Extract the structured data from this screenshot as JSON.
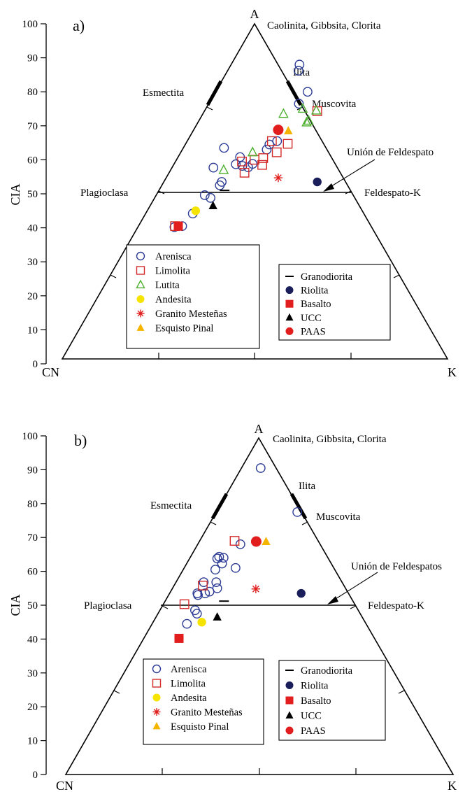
{
  "figure": {
    "ylabel": "CIA",
    "vertex_a": "A",
    "vertex_cn": "CN",
    "vertex_k": "K",
    "minerals": {
      "top": "Caolinita, Gibbsita, Clorita",
      "illite": "Ilita",
      "smectite": "Esmectita",
      "muscovite": "Muscovita",
      "plagioclase": "Plagioclasa",
      "kfeldspar": "Feldespato-K"
    },
    "yticks": [
      "0",
      "10",
      "20",
      "30",
      "40",
      "50",
      "60",
      "70",
      "80",
      "90",
      "100"
    ]
  },
  "chart_data": [
    {
      "type": "scatter",
      "panel_label": "a)",
      "feldspar_join_label": "Unión de Feldespato",
      "ylabel": "CIA",
      "ylim": [
        0,
        100
      ],
      "legend_left": [
        {
          "label": "Arenisca",
          "marker": "open-circle",
          "color": "#2b3b94"
        },
        {
          "label": "Limolita",
          "marker": "open-square",
          "color": "#d42a2a"
        },
        {
          "label": "Lutita",
          "marker": "open-triangle",
          "color": "#4caf2e"
        },
        {
          "label": "Andesita",
          "marker": "filled-circle",
          "color": "#f5e400"
        },
        {
          "label": "Granito Mesteñas",
          "marker": "asterisk",
          "color": "#e11d1d"
        },
        {
          "label": "Esquisto Pinal",
          "marker": "filled-triangle",
          "color": "#f5b400"
        }
      ],
      "legend_right": [
        {
          "label": "Granodiorita",
          "marker": "dash",
          "color": "#000000"
        },
        {
          "label": "Riolita",
          "marker": "filled-circle",
          "color": "#1a1f5c"
        },
        {
          "label": "Basalto",
          "marker": "filled-square",
          "color": "#e11d1d"
        },
        {
          "label": "UCC",
          "marker": "filled-triangle",
          "color": "#000000"
        },
        {
          "label": "PAAS",
          "marker": "filled-circle",
          "color": "#e11d1d"
        }
      ],
      "points": [
        {
          "series": "Arenisca",
          "x": -41.5,
          "y": 40.2
        },
        {
          "series": "Arenisca",
          "x": -37.5,
          "y": 40.5
        },
        {
          "series": "Arenisca",
          "x": -32.0,
          "y": 44.2
        },
        {
          "series": "Arenisca",
          "x": -25.8,
          "y": 49.6
        },
        {
          "series": "Arenisca",
          "x": -22.8,
          "y": 48.8
        },
        {
          "series": "Arenisca",
          "x": -18.0,
          "y": 52.5
        },
        {
          "series": "Arenisca",
          "x": -17.0,
          "y": 53.5
        },
        {
          "series": "Arenisca",
          "x": -21.3,
          "y": 57.7
        },
        {
          "series": "Arenisca",
          "x": -15.8,
          "y": 63.5
        },
        {
          "series": "Arenisca",
          "x": -9.7,
          "y": 58.7
        },
        {
          "series": "Arenisca",
          "x": -6.3,
          "y": 58.2
        },
        {
          "series": "Arenisca",
          "x": -3.3,
          "y": 57.8
        },
        {
          "series": "Arenisca",
          "x": -1.0,
          "y": 58.8
        },
        {
          "series": "Arenisca",
          "x": 6.3,
          "y": 63.0
        },
        {
          "series": "Arenisca",
          "x": 7.7,
          "y": 64.5
        },
        {
          "series": "Arenisca",
          "x": 11.7,
          "y": 65.5
        },
        {
          "series": "Arenisca",
          "x": -7.5,
          "y": 60.8
        },
        {
          "series": "Arenisca",
          "x": 23.0,
          "y": 76.5
        },
        {
          "series": "Arenisca",
          "x": 27.5,
          "y": 80.0
        },
        {
          "series": "Arenisca",
          "x": 22.8,
          "y": 86.2
        },
        {
          "series": "Arenisca",
          "x": 23.3,
          "y": 88.0
        },
        {
          "series": "Limolita",
          "x": -41.2,
          "y": 40.5
        },
        {
          "series": "Limolita",
          "x": -6.5,
          "y": 59.5
        },
        {
          "series": "Limolita",
          "x": -5.2,
          "y": 56.2
        },
        {
          "series": "Limolita",
          "x": 0.0,
          "y": 60.0
        },
        {
          "series": "Limolita",
          "x": 4.0,
          "y": 58.5
        },
        {
          "series": "Limolita",
          "x": 4.5,
          "y": 60.5
        },
        {
          "series": "Limolita",
          "x": 9.0,
          "y": 65.5
        },
        {
          "series": "Limolita",
          "x": 11.5,
          "y": 62.2
        },
        {
          "series": "Limolita",
          "x": 17.2,
          "y": 64.7
        },
        {
          "series": "Limolita",
          "x": 32.5,
          "y": 74.3
        },
        {
          "series": "Lutita",
          "x": -16.0,
          "y": 57.0
        },
        {
          "series": "Lutita",
          "x": -1.0,
          "y": 62.2
        },
        {
          "series": "Lutita",
          "x": 15.0,
          "y": 73.5
        },
        {
          "series": "Lutita",
          "x": 25.0,
          "y": 75.0
        },
        {
          "series": "Lutita",
          "x": 27.0,
          "y": 71.0
        },
        {
          "series": "Lutita",
          "x": 28.0,
          "y": 71.5
        },
        {
          "series": "Lutita",
          "x": 32.0,
          "y": 74.5
        },
        {
          "series": "Andesita",
          "x": -30.5,
          "y": 45.0
        },
        {
          "series": "Granito Mesteñas",
          "x": 12.3,
          "y": 54.7
        },
        {
          "series": "Esquisto Pinal",
          "x": 17.5,
          "y": 68.5
        },
        {
          "series": "Granodiorita",
          "x": -15.5,
          "y": 51.0
        },
        {
          "series": "Riolita",
          "x": 32.5,
          "y": 53.5
        },
        {
          "series": "Basalto",
          "x": -39.5,
          "y": 40.5
        },
        {
          "series": "UCC",
          "x": -21.5,
          "y": 46.5
        },
        {
          "series": "PAAS",
          "x": 12.3,
          "y": 68.8
        }
      ]
    },
    {
      "type": "scatter",
      "panel_label": "b)",
      "feldspar_join_label": "Unión de Feldespatos",
      "ylabel": "CIA",
      "ylim": [
        0,
        100
      ],
      "legend_left": [
        {
          "label": "Arenisca",
          "marker": "open-circle",
          "color": "#2b3b94"
        },
        {
          "label": "Limolita",
          "marker": "open-square",
          "color": "#d42a2a"
        },
        {
          "label": "Andesita",
          "marker": "filled-circle",
          "color": "#f5e400"
        },
        {
          "label": "Granito Mesteñas",
          "marker": "asterisk",
          "color": "#e11d1d"
        },
        {
          "label": "Esquisto Pinal",
          "marker": "filled-triangle",
          "color": "#f5b400"
        }
      ],
      "legend_right": [
        {
          "label": "Granodiorita",
          "marker": "dash",
          "color": "#000000"
        },
        {
          "label": "Riolita",
          "marker": "filled-circle",
          "color": "#1a1f5c"
        },
        {
          "label": "Basalto",
          "marker": "filled-square",
          "color": "#e11d1d"
        },
        {
          "label": "UCC",
          "marker": "filled-triangle",
          "color": "#000000"
        },
        {
          "label": "PAAS",
          "marker": "filled-circle",
          "color": "#e11d1d"
        }
      ],
      "points": [
        {
          "series": "Arenisca",
          "x": 1.0,
          "y": 90.5
        },
        {
          "series": "Arenisca",
          "x": 20.0,
          "y": 77.5
        },
        {
          "series": "Arenisca",
          "x": -37.2,
          "y": 44.5
        },
        {
          "series": "Arenisca",
          "x": -33.0,
          "y": 48.5
        },
        {
          "series": "Arenisca",
          "x": -32.0,
          "y": 47.5
        },
        {
          "series": "Arenisca",
          "x": -31.8,
          "y": 53.5
        },
        {
          "series": "Arenisca",
          "x": -31.5,
          "y": 53.0
        },
        {
          "series": "Arenisca",
          "x": -27.8,
          "y": 53.5
        },
        {
          "series": "Arenisca",
          "x": -28.5,
          "y": 56.8
        },
        {
          "series": "Arenisca",
          "x": -25.5,
          "y": 54.0
        },
        {
          "series": "Arenisca",
          "x": -22.0,
          "y": 56.8
        },
        {
          "series": "Arenisca",
          "x": -21.5,
          "y": 55.0
        },
        {
          "series": "Arenisca",
          "x": -22.5,
          "y": 60.5
        },
        {
          "series": "Arenisca",
          "x": -21.5,
          "y": 63.8
        },
        {
          "series": "Arenisca",
          "x": -20.5,
          "y": 64.3
        },
        {
          "series": "Arenisca",
          "x": -19.0,
          "y": 62.3
        },
        {
          "series": "Arenisca",
          "x": -18.2,
          "y": 64.0
        },
        {
          "series": "Arenisca",
          "x": -12.0,
          "y": 61.0
        },
        {
          "series": "Arenisca",
          "x": -9.5,
          "y": 68.0
        },
        {
          "series": "Limolita",
          "x": -38.5,
          "y": 50.3
        },
        {
          "series": "Limolita",
          "x": -29.0,
          "y": 55.8
        },
        {
          "series": "Limolita",
          "x": -12.5,
          "y": 69.0
        },
        {
          "series": "Andesita",
          "x": -29.5,
          "y": 45.0
        },
        {
          "series": "Granito Mesteñas",
          "x": -1.5,
          "y": 54.8
        },
        {
          "series": "Esquisto Pinal",
          "x": 3.8,
          "y": 68.8
        },
        {
          "series": "Granodiorita",
          "x": -18.0,
          "y": 51.2
        },
        {
          "series": "Riolita",
          "x": 22.0,
          "y": 53.5
        },
        {
          "series": "Basalto",
          "x": -41.3,
          "y": 40.2
        },
        {
          "series": "UCC",
          "x": -21.5,
          "y": 46.5
        },
        {
          "series": "PAAS",
          "x": -1.3,
          "y": 68.8
        }
      ]
    }
  ]
}
